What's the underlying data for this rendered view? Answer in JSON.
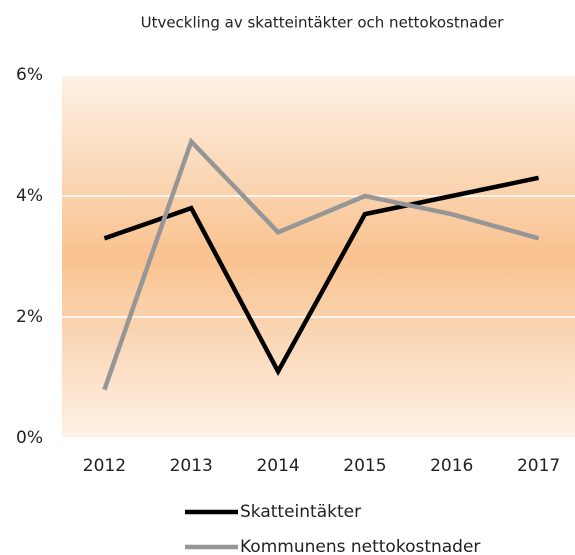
{
  "chart_data": {
    "type": "line",
    "title": "Utveckling av skatteintäkter och nettokostnader",
    "categories": [
      "2012",
      "2013",
      "2014",
      "2015",
      "2016",
      "2017"
    ],
    "series": [
      {
        "name": "Skatteintäkter",
        "color": "#000000",
        "values": [
          3.3,
          3.8,
          1.1,
          3.7,
          4.0,
          4.3
        ]
      },
      {
        "name": "Kommunens nettokostnader",
        "color": "#969696",
        "values": [
          0.8,
          4.9,
          3.4,
          4.0,
          3.7,
          3.3
        ]
      }
    ],
    "ylim": [
      0,
      6
    ],
    "yticks": [
      {
        "value": 0,
        "label": "0%"
      },
      {
        "value": 2,
        "label": "2%"
      },
      {
        "value": 4,
        "label": "4%"
      },
      {
        "value": 6,
        "label": "6%"
      }
    ],
    "grid": true,
    "legend": "bottom"
  }
}
